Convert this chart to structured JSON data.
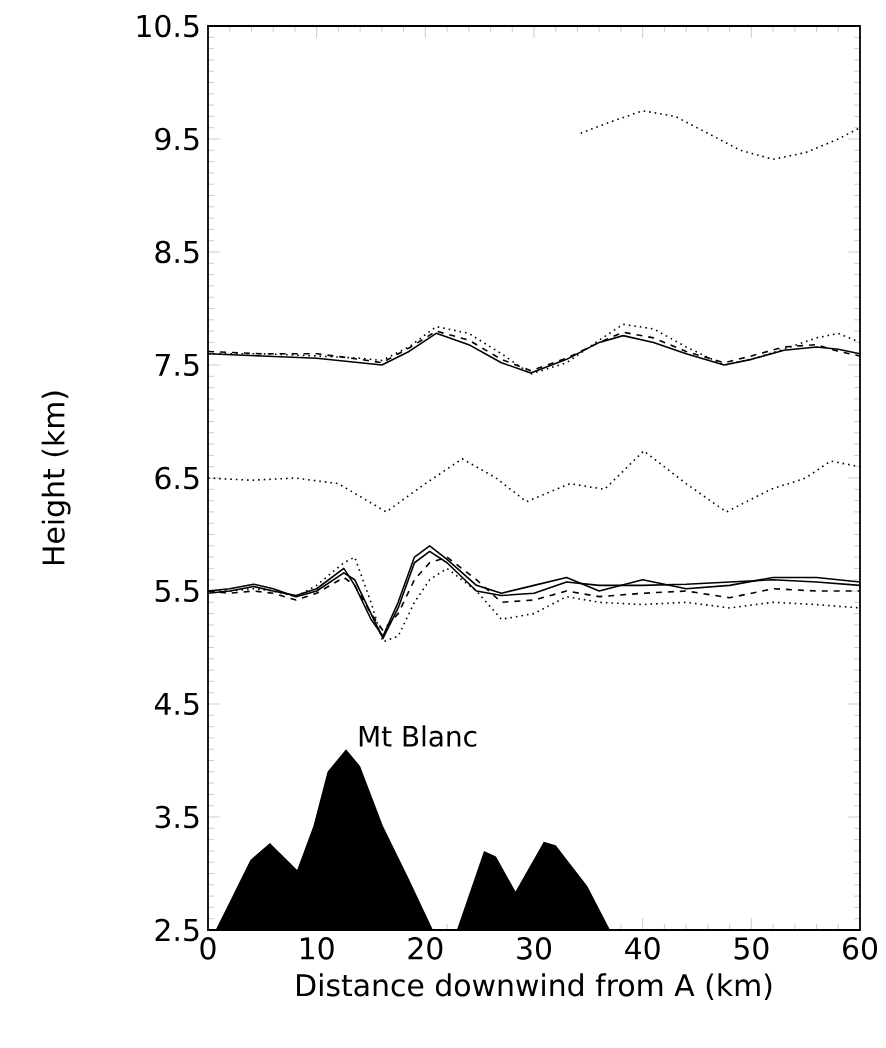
{
  "chart_data": {
    "type": "line",
    "xlabel": "Distance downwind from A (km)",
    "ylabel": "Height (km)",
    "xlim": [
      0,
      60
    ],
    "xticks": [
      0,
      10,
      20,
      30,
      40,
      50,
      60
    ],
    "ylim": [
      2.5,
      10.5
    ],
    "yticks": [
      2.5,
      3.5,
      4.5,
      5.5,
      6.5,
      7.5,
      8.5,
      9.5,
      10.5
    ],
    "annotations": [
      {
        "text": "Mt Blanc",
        "x": 13.5,
        "y": 4.1
      }
    ],
    "series": [
      {
        "type": "area",
        "color": "#000000",
        "x": [
          0.7,
          2,
          3.9,
          5.7,
          8.2,
          9.7,
          11,
          12.7,
          14,
          16.1,
          18.5,
          20.7,
          22.9,
          25.4,
          26.5,
          28.3,
          30.9,
          32,
          34.9,
          37
        ],
        "values": [
          2.5,
          2.75,
          3.12,
          3.27,
          3.03,
          3.42,
          3.9,
          4.1,
          3.95,
          3.42,
          2.95,
          2.5,
          2.5,
          3.2,
          3.15,
          2.84,
          3.28,
          3.25,
          2.89,
          2.5
        ]
      },
      {
        "color": "#000000",
        "line_style": "dotted",
        "x": [
          34.3,
          37,
          40,
          43,
          46,
          49,
          52,
          55,
          58,
          60
        ],
        "values": [
          9.55,
          9.65,
          9.75,
          9.7,
          9.55,
          9.4,
          9.32,
          9.38,
          9.5,
          9.6
        ]
      },
      {
        "color": "#000000",
        "line_style": "solid",
        "x": [
          0,
          5,
          10,
          14,
          16,
          18.5,
          21,
          24,
          27,
          29.7,
          33,
          36,
          38.2,
          41,
          44,
          47.5,
          50,
          53,
          56,
          58,
          60
        ],
        "values": [
          7.6,
          7.58,
          7.56,
          7.52,
          7.5,
          7.62,
          7.78,
          7.68,
          7.52,
          7.43,
          7.55,
          7.7,
          7.76,
          7.7,
          7.6,
          7.5,
          7.55,
          7.63,
          7.66,
          7.64,
          7.6
        ]
      },
      {
        "color": "#000000",
        "line_style": "dashed",
        "x": [
          0,
          5,
          10,
          14,
          16,
          18.5,
          21,
          24,
          27,
          29.7,
          33,
          36,
          38.2,
          41,
          44,
          47.5,
          50,
          53,
          56,
          58,
          60
        ],
        "values": [
          7.62,
          7.6,
          7.6,
          7.55,
          7.52,
          7.65,
          7.8,
          7.72,
          7.55,
          7.45,
          7.56,
          7.7,
          7.79,
          7.74,
          7.62,
          7.52,
          7.58,
          7.66,
          7.68,
          7.62,
          7.58
        ]
      },
      {
        "color": "#000000",
        "line_style": "dotted",
        "x": [
          0,
          5,
          10,
          14,
          16,
          18.5,
          21,
          24,
          27,
          29.7,
          33,
          36,
          38.2,
          41,
          44,
          47.5,
          50,
          53,
          56,
          58,
          60
        ],
        "values": [
          7.6,
          7.6,
          7.58,
          7.56,
          7.54,
          7.66,
          7.84,
          7.78,
          7.6,
          7.42,
          7.52,
          7.72,
          7.86,
          7.82,
          7.66,
          7.5,
          7.55,
          7.64,
          7.74,
          7.78,
          7.7
        ]
      },
      {
        "color": "#000000",
        "line_style": "dotted",
        "x": [
          0,
          4,
          8,
          12,
          16.4,
          20,
          23.4,
          26.5,
          29.3,
          33.3,
          36.5,
          40.1,
          44,
          47.7,
          51.8,
          55,
          57.3,
          60
        ],
        "values": [
          6.5,
          6.48,
          6.5,
          6.45,
          6.2,
          6.45,
          6.67,
          6.5,
          6.29,
          6.45,
          6.4,
          6.74,
          6.45,
          6.2,
          6.4,
          6.5,
          6.65,
          6.6
        ]
      },
      {
        "color": "#000000",
        "line_style": "solid",
        "x": [
          0,
          2,
          4.2,
          6,
          8.1,
          10,
          12.5,
          13.5,
          15,
          16.1,
          17.5,
          19,
          20.4,
          22,
          24.7,
          27,
          30,
          33,
          36,
          40,
          44,
          48,
          52,
          56,
          60
        ],
        "values": [
          5.5,
          5.52,
          5.56,
          5.52,
          5.45,
          5.5,
          5.66,
          5.6,
          5.3,
          5.08,
          5.35,
          5.75,
          5.85,
          5.75,
          5.5,
          5.46,
          5.48,
          5.58,
          5.55,
          5.55,
          5.56,
          5.58,
          5.6,
          5.58,
          5.55
        ]
      },
      {
        "color": "#000000",
        "line_style": "solid",
        "x": [
          0,
          2,
          4.2,
          6,
          8.1,
          10,
          12.5,
          13.5,
          15,
          16.1,
          17.5,
          19,
          20.4,
          22,
          24.7,
          27,
          30,
          33,
          36,
          40,
          44,
          48,
          52,
          56,
          60
        ],
        "values": [
          5.48,
          5.5,
          5.54,
          5.5,
          5.46,
          5.52,
          5.7,
          5.55,
          5.25,
          5.1,
          5.4,
          5.8,
          5.9,
          5.78,
          5.55,
          5.48,
          5.55,
          5.62,
          5.5,
          5.6,
          5.52,
          5.55,
          5.62,
          5.62,
          5.58
        ]
      },
      {
        "color": "#000000",
        "line_style": "dashed",
        "x": [
          0,
          2,
          4.2,
          6,
          8.1,
          10,
          12.5,
          13.5,
          15,
          16.1,
          17.5,
          19,
          20.4,
          22,
          24.7,
          27,
          30,
          33,
          36,
          40,
          44,
          48,
          52,
          56,
          60
        ],
        "values": [
          5.5,
          5.48,
          5.5,
          5.48,
          5.42,
          5.48,
          5.62,
          5.55,
          5.3,
          5.15,
          5.3,
          5.6,
          5.75,
          5.8,
          5.6,
          5.4,
          5.42,
          5.5,
          5.45,
          5.48,
          5.5,
          5.44,
          5.52,
          5.5,
          5.5
        ]
      },
      {
        "color": "#000000",
        "line_style": "dotted",
        "x": [
          0,
          2,
          4.2,
          6,
          8.1,
          10,
          12.5,
          13.5,
          15,
          16.1,
          17.5,
          19,
          20.4,
          22,
          24.7,
          27,
          30,
          33,
          36,
          40,
          44,
          48,
          52,
          56,
          60
        ],
        "values": [
          5.5,
          5.5,
          5.52,
          5.5,
          5.45,
          5.55,
          5.75,
          5.8,
          5.4,
          5.05,
          5.1,
          5.4,
          5.6,
          5.7,
          5.5,
          5.25,
          5.3,
          5.45,
          5.4,
          5.38,
          5.4,
          5.35,
          5.4,
          5.38,
          5.35
        ]
      }
    ]
  }
}
